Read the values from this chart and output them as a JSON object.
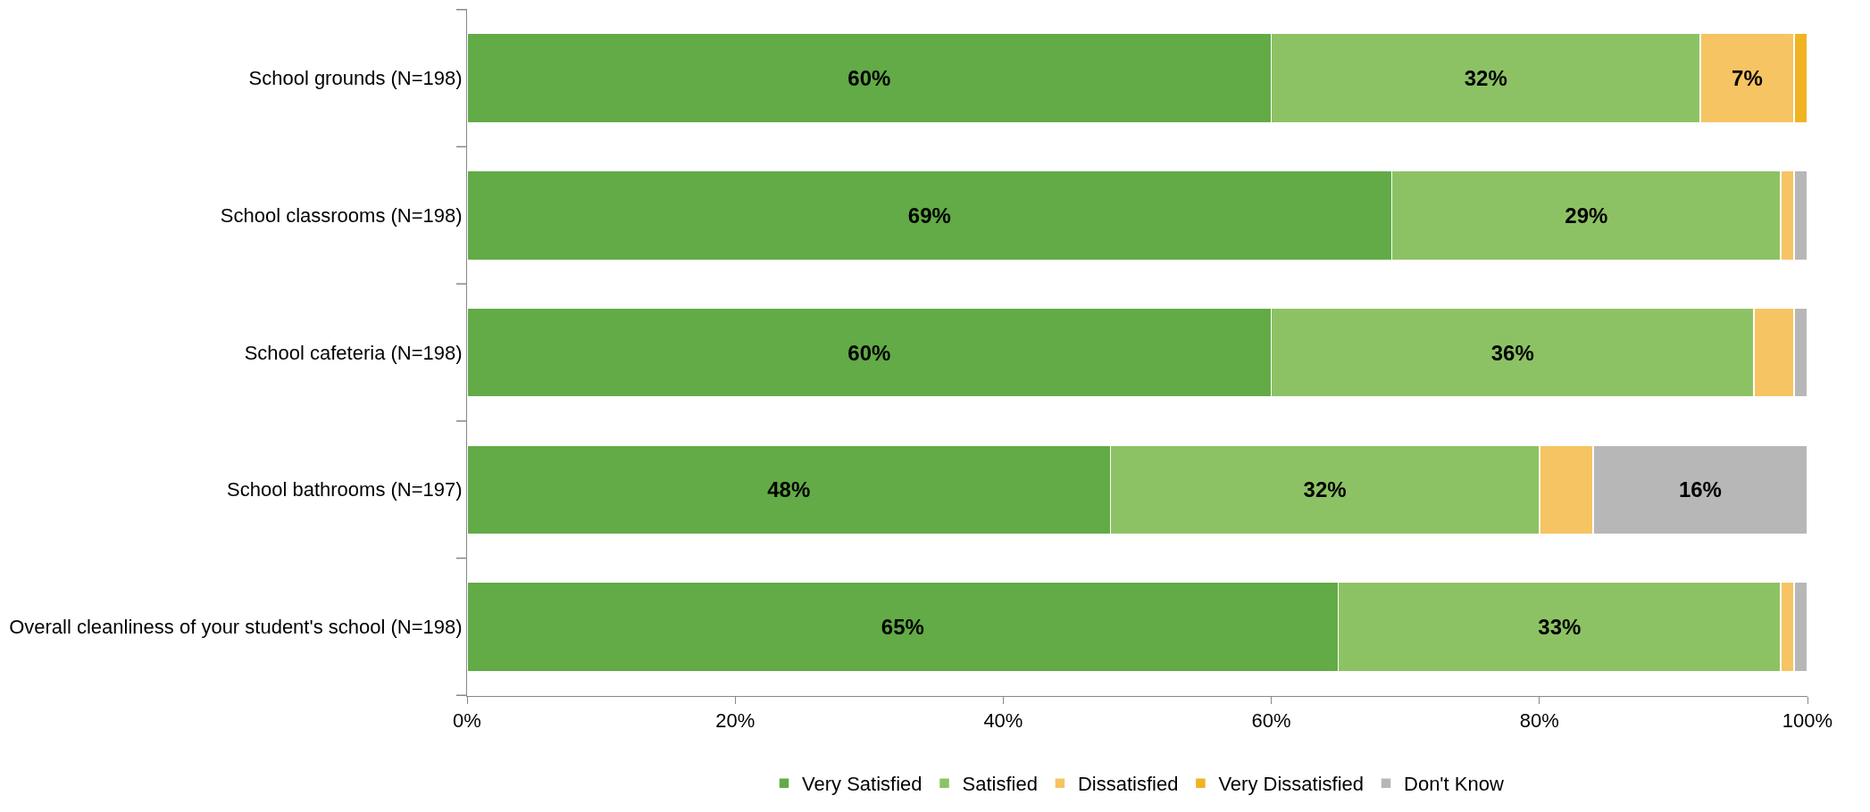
{
  "chart_data": {
    "type": "bar",
    "orientation": "horizontal",
    "stacked": true,
    "categories": [
      "School grounds (N=198)",
      "School classrooms (N=198)",
      "School cafeteria (N=198)",
      "School bathrooms (N=197)",
      "Overall cleanliness of your student's school (N=198)"
    ],
    "series": [
      {
        "name": "Very Satisfied",
        "color": "#62ab46",
        "values": [
          60,
          69,
          60,
          48,
          65
        ],
        "value_labels": [
          "60%",
          "69%",
          "60%",
          "48%",
          "65%"
        ]
      },
      {
        "name": "Satisfied",
        "color": "#8dc264",
        "values": [
          32,
          29,
          36,
          32,
          33
        ],
        "value_labels": [
          "32%",
          "29%",
          "36%",
          "32%",
          "33%"
        ]
      },
      {
        "name": "Dissatisfied",
        "color": "#f6c462",
        "values": [
          7,
          1,
          3,
          4,
          1
        ],
        "value_labels": [
          "7%",
          null,
          null,
          null,
          null
        ]
      },
      {
        "name": "Very Dissatisfied",
        "color": "#f0b323",
        "values": [
          1,
          null,
          null,
          null,
          null
        ],
        "value_labels": [
          null,
          null,
          null,
          null,
          null
        ]
      },
      {
        "name": "Don't Know",
        "color": "#b7b7b7",
        "values": [
          null,
          1,
          1,
          16,
          1
        ],
        "value_labels": [
          null,
          null,
          null,
          "16%",
          null
        ]
      }
    ],
    "xlim": [
      0,
      100
    ],
    "xticks": [
      {
        "value": 0,
        "label": "0%"
      },
      {
        "value": 20,
        "label": "20%"
      },
      {
        "value": 40,
        "label": "40%"
      },
      {
        "value": 60,
        "label": "60%"
      },
      {
        "value": 80,
        "label": "80%"
      },
      {
        "value": 100,
        "label": "100%"
      }
    ],
    "legend": "bottom"
  }
}
